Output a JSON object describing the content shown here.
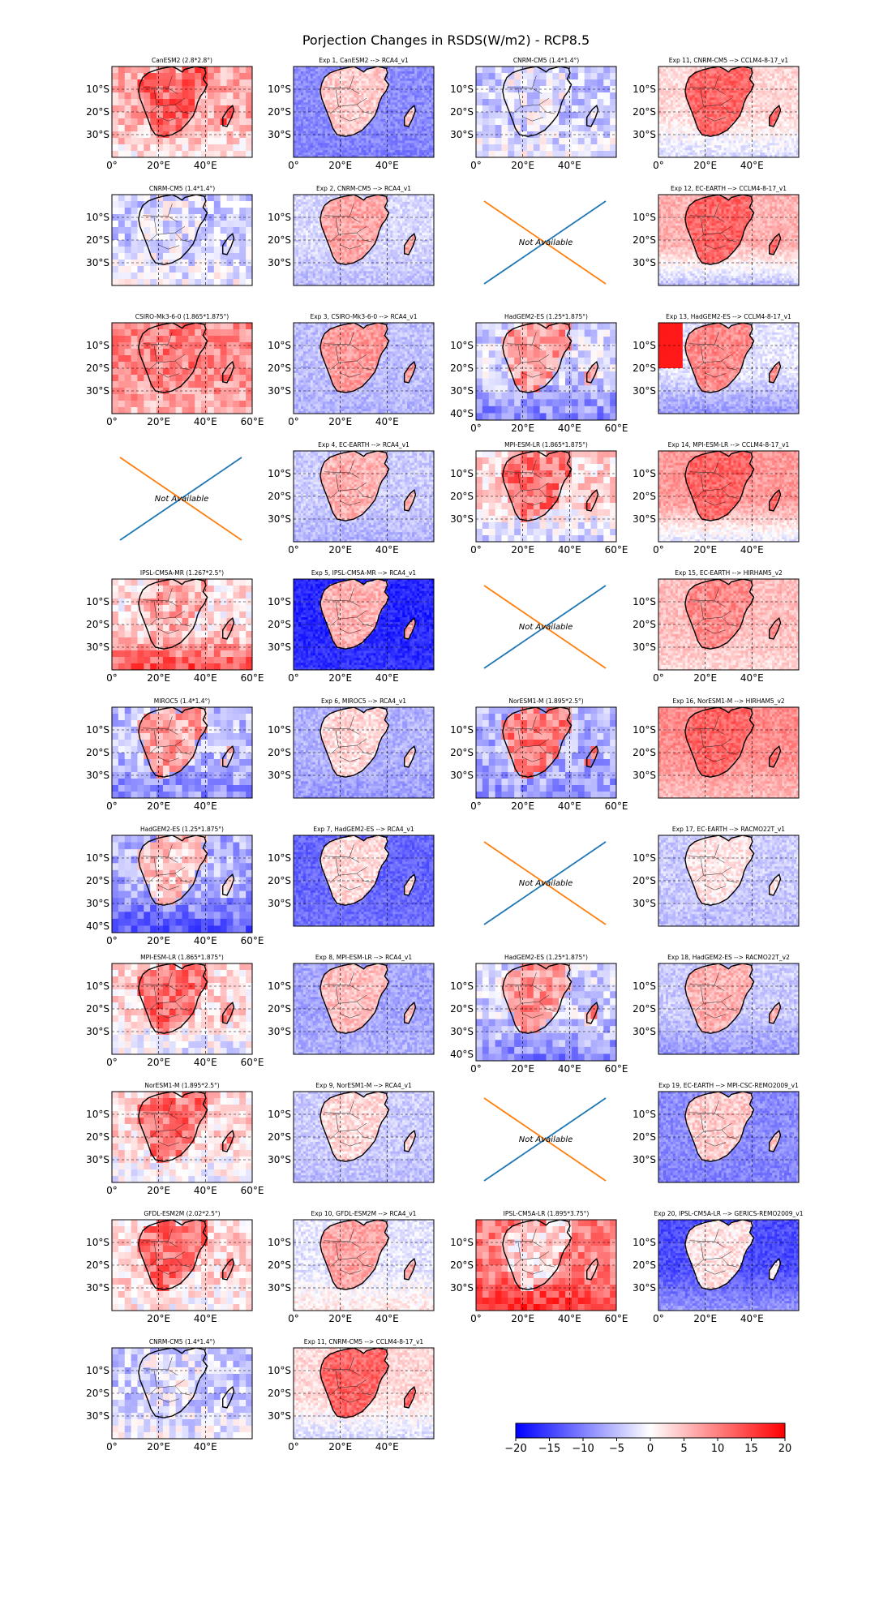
{
  "figure": {
    "title": "Porjection Changes in RSDS(W/m2) - RCP8.5",
    "not_available_label": "Not Available"
  },
  "colormap": {
    "name": "bwr",
    "negative_color": "#0000ff",
    "zero_color": "#ffffff",
    "positive_color": "#ff0000",
    "na_line_colors": [
      "#1f77b4",
      "#ff7f0e"
    ],
    "coast_color": "#000000",
    "grid_color": "#000000"
  },
  "colorbar": {
    "vmin": -20,
    "vmax": 20,
    "ticks": [
      "−20",
      "−15",
      "−10",
      "−5",
      "0",
      "5",
      "10",
      "15",
      "20"
    ]
  },
  "chart_data": {
    "type": "heatmap",
    "variable": "RSDS change (W/m2)",
    "scenario": "RCP8.5",
    "region": "Southern Africa",
    "lon_range": [
      0,
      60
    ],
    "lat_range": [
      -40,
      0
    ],
    "grid_lines": "dashed",
    "legend_placement": "bottom-right colorbar",
    "panels": [
      {
        "title": "CanESM2 (2.8*2.8°)",
        "na": false,
        "land": 12,
        "ocean": 6,
        "south": 2,
        "blocky": true,
        "yticks": [
          "10°S",
          "20°S",
          "30°S"
        ],
        "xticks": [
          "0°",
          "20°E",
          "40°E"
        ]
      },
      {
        "title": "Exp 1, CanESM2 --> RCA4_v1",
        "na": false,
        "land": 4,
        "ocean": -9,
        "south": -10,
        "blocky": false,
        "yticks": [
          "10°S",
          "20°S",
          "30°S"
        ],
        "xticks": [
          "0°",
          "20°E",
          "40°E"
        ]
      },
      {
        "title": "CNRM-CM5 (1.4*1.4°)",
        "na": false,
        "land": -2,
        "ocean": -4,
        "south": -1,
        "blocky": true,
        "yticks": [
          "10°S",
          "20°S",
          "30°S"
        ],
        "xticks": [
          "0°",
          "20°E",
          "40°E"
        ]
      },
      {
        "title": "Exp 11, CNRM-CM5 --> CCLM4-8-17_v1",
        "na": false,
        "land": 12,
        "ocean": 3,
        "south": -3,
        "blocky": false,
        "yticks": [
          "10°S",
          "20°S",
          "30°S"
        ],
        "xticks": [
          "0°",
          "20°E",
          "40°E"
        ]
      },
      {
        "title": "CNRM-CM5 (1.4*1.4°)",
        "na": false,
        "land": -2,
        "ocean": -4,
        "south": -1,
        "blocky": true,
        "yticks": [
          "10°S",
          "20°S",
          "30°S"
        ],
        "xticks": []
      },
      {
        "title": "Exp 2, CNRM-CM5 --> RCA4_v1",
        "na": false,
        "land": 7,
        "ocean": -3,
        "south": -5,
        "blocky": false,
        "yticks": [
          "10°S",
          "20°S",
          "30°S"
        ],
        "xticks": []
      },
      {
        "title": "",
        "na": true
      },
      {
        "title": "Exp 12, EC-EARTH --> CCLM4-8-17_v1",
        "na": false,
        "land": 12,
        "ocean": 6,
        "south": -5,
        "blocky": false,
        "yticks": [
          "10°S",
          "20°S",
          "30°S"
        ],
        "xticks": []
      },
      {
        "title": "CSIRO-Mk3-6-0 (1.865*1.875°)",
        "na": false,
        "land": 10,
        "ocean": 9,
        "south": 6,
        "blocky": true,
        "yticks": [
          "10°S",
          "20°S",
          "30°S"
        ],
        "xticks": [
          "0°",
          "20°E",
          "40°E",
          "60°E"
        ]
      },
      {
        "title": "Exp 3, CSIRO-Mk3-6-0 --> RCA4_v1",
        "na": false,
        "land": 8,
        "ocean": -5,
        "south": -6,
        "blocky": false,
        "yticks": [
          "10°S",
          "20°S",
          "30°S"
        ],
        "xticks": [
          "0°",
          "20°E",
          "40°E"
        ]
      },
      {
        "title": "HadGEM2-ES (1.25*1.875°)",
        "na": false,
        "land": 8,
        "ocean": -3,
        "south": -9,
        "blocky": true,
        "tall": true,
        "yticks": [
          "10°S",
          "20°S",
          "30°S",
          "40°S"
        ],
        "xticks": [
          "0°",
          "20°E",
          "40°E",
          "60°E"
        ]
      },
      {
        "title": "Exp 13, HadGEM2-ES --> CCLM4-8-17_v1",
        "na": false,
        "land": 9,
        "ocean": -2,
        "south": -8,
        "blocky": false,
        "hotspot": true,
        "yticks": [
          "10°S",
          "20°S",
          "30°S"
        ],
        "xticks": []
      },
      {
        "title": "",
        "na": true
      },
      {
        "title": "Exp 4, EC-EARTH --> RCA4_v1",
        "na": false,
        "land": 6,
        "ocean": -4,
        "south": -6,
        "blocky": false,
        "yticks": [
          "10°S",
          "20°S",
          "30°S"
        ],
        "xticks": [
          "0°",
          "20°E",
          "40°E"
        ]
      },
      {
        "title": "MPI-ESM-LR (1.865*1.875°)",
        "na": false,
        "land": 11,
        "ocean": 3,
        "south": -4,
        "blocky": true,
        "yticks": [
          "10°S",
          "20°S",
          "30°S"
        ],
        "xticks": [
          "0°",
          "20°E",
          "40°E",
          "60°E"
        ]
      },
      {
        "title": "Exp 14, MPI-ESM-LR --> CCLM4-8-17_v1",
        "na": false,
        "land": 12,
        "ocean": 8,
        "south": -2,
        "blocky": false,
        "yticks": [
          "10°S",
          "20°S",
          "30°S"
        ],
        "xticks": [
          "0°",
          "20°E",
          "40°E"
        ]
      },
      {
        "title": "IPSL-CM5A-MR (1.267*2.5°)",
        "na": false,
        "land": 6,
        "ocean": 2,
        "south": 15,
        "blocky": true,
        "yticks": [
          "10°S",
          "20°S",
          "30°S"
        ],
        "xticks": [
          "0°",
          "20°E",
          "40°E",
          "60°E"
        ]
      },
      {
        "title": "Exp 5, IPSL-CM5A-MR --> RCA4_v1",
        "na": false,
        "land": 6,
        "ocean": -17,
        "south": -16,
        "blocky": false,
        "yticks": [
          "10°S",
          "20°S",
          "30°S"
        ],
        "xticks": [
          "0°",
          "20°E",
          "40°E"
        ]
      },
      {
        "title": "",
        "na": true
      },
      {
        "title": "Exp 15, EC-EARTH --> HIRHAM5_v2",
        "na": false,
        "land": 9,
        "ocean": 5,
        "south": 3,
        "blocky": false,
        "yticks": [
          "10°S",
          "20°S",
          "30°S"
        ],
        "xticks": [
          "0°",
          "20°E",
          "40°E"
        ]
      },
      {
        "title": "MIROC5 (1.4*1.4°)",
        "na": false,
        "land": 7,
        "ocean": -5,
        "south": -9,
        "blocky": true,
        "yticks": [
          "10°S",
          "20°S",
          "30°S"
        ],
        "xticks": [
          "0°",
          "20°E",
          "40°E"
        ]
      },
      {
        "title": "Exp 6, MIROC5 --> RCA4_v1",
        "na": false,
        "land": 3,
        "ocean": -6,
        "south": -8,
        "blocky": false,
        "yticks": [
          "10°S",
          "20°S",
          "30°S"
        ],
        "xticks": []
      },
      {
        "title": "NorESM1-M (1.895*2.5°)",
        "na": false,
        "land": 10,
        "ocean": -6,
        "south": -8,
        "blocky": true,
        "yticks": [
          "10°S",
          "20°S",
          "30°S"
        ],
        "xticks": [
          "0°",
          "20°E",
          "40°E",
          "60°E"
        ]
      },
      {
        "title": "Exp 16, NorESM1-M --> HIRHAM5_v2",
        "na": false,
        "land": 12,
        "ocean": 9,
        "south": 5,
        "blocky": false,
        "yticks": [
          "10°S",
          "20°S",
          "30°S"
        ],
        "xticks": []
      },
      {
        "title": "HadGEM2-ES (1.25*1.875°)",
        "na": false,
        "land": 4,
        "ocean": -6,
        "south": -12,
        "blocky": true,
        "tall": true,
        "yticks": [
          "10°S",
          "20°S",
          "30°S",
          "40°S"
        ],
        "xticks": [
          "0°",
          "20°E",
          "40°E",
          "60°E"
        ]
      },
      {
        "title": "Exp 7, HadGEM2-ES --> RCA4_v1",
        "na": false,
        "land": 3,
        "ocean": -12,
        "south": -11,
        "blocky": false,
        "yticks": [
          "10°S",
          "20°S",
          "30°S"
        ],
        "xticks": []
      },
      {
        "title": "",
        "na": true
      },
      {
        "title": "Exp 17, EC-EARTH --> RACMO22T_v1",
        "na": false,
        "land": 2,
        "ocean": -4,
        "south": -5,
        "blocky": false,
        "yticks": [
          "10°S",
          "20°S",
          "30°S"
        ],
        "xticks": []
      },
      {
        "title": "MPI-ESM-LR (1.865*1.875°)",
        "na": false,
        "land": 11,
        "ocean": 3,
        "south": -2,
        "blocky": true,
        "yticks": [
          "10°S",
          "20°S",
          "30°S"
        ],
        "xticks": [
          "0°",
          "20°E",
          "40°E",
          "60°E"
        ]
      },
      {
        "title": "Exp 8, MPI-ESM-LR --> RCA4_v1",
        "na": false,
        "land": 5,
        "ocean": -7,
        "south": -6,
        "blocky": false,
        "yticks": [
          "10°S",
          "20°S",
          "30°S"
        ],
        "xticks": []
      },
      {
        "title": "HadGEM2-ES (1.25*1.875°)",
        "na": false,
        "land": 8,
        "ocean": -3,
        "south": -9,
        "blocky": true,
        "tall": true,
        "yticks": [
          "10°S",
          "20°S",
          "30°S",
          "40°S"
        ],
        "xticks": [
          "0°",
          "20°E",
          "40°E",
          "60°E"
        ]
      },
      {
        "title": "Exp 18, HadGEM2-ES --> RACMO22T_v2",
        "na": false,
        "land": 6,
        "ocean": -4,
        "south": -8,
        "blocky": false,
        "yticks": [
          "10°S",
          "20°S",
          "30°S"
        ],
        "xticks": []
      },
      {
        "title": "NorESM1-M (1.895*2.5°)",
        "na": false,
        "land": 11,
        "ocean": 3,
        "south": -1,
        "blocky": true,
        "yticks": [
          "10°S",
          "20°S",
          "30°S"
        ],
        "xticks": [
          "0°",
          "20°E",
          "40°E",
          "60°E"
        ]
      },
      {
        "title": "Exp 9, NorESM1-M --> RCA4_v1",
        "na": false,
        "land": 3,
        "ocean": -4,
        "south": -5,
        "blocky": false,
        "yticks": [
          "10°S",
          "20°S",
          "30°S"
        ],
        "xticks": []
      },
      {
        "title": "",
        "na": true
      },
      {
        "title": "Exp 19, EC-EARTH --> MPI-CSC-REMO2009_v1",
        "na": false,
        "land": 4,
        "ocean": -9,
        "south": -10,
        "blocky": false,
        "yticks": [
          "10°S",
          "20°S",
          "30°S"
        ],
        "xticks": []
      },
      {
        "title": "GFDL-ESM2M (2.02*2.5°)",
        "na": false,
        "land": 11,
        "ocean": 3,
        "south": 1,
        "blocky": true,
        "yticks": [
          "10°S",
          "20°S",
          "30°S"
        ],
        "xticks": [
          "20°E",
          "40°E"
        ]
      },
      {
        "title": "Exp 10, GFDL-ESM2M --> RCA4_v1",
        "na": false,
        "land": 7,
        "ocean": -2,
        "south": 2,
        "blocky": false,
        "yticks": [
          "10°S",
          "20°S",
          "30°S"
        ],
        "xticks": [
          "0°",
          "20°E",
          "40°E"
        ]
      },
      {
        "title": "IPSL-CM5A-LR (1.895*3.75°)",
        "na": false,
        "land": 3,
        "ocean": 10,
        "south": 16,
        "blocky": true,
        "yticks": [
          "10°S",
          "20°S",
          "30°S"
        ],
        "xticks": [
          "0°",
          "20°E",
          "40°E",
          "60°E"
        ]
      },
      {
        "title": "Exp 20, IPSL-CM5A-LR --> GERICS-REMO2009_v1",
        "na": false,
        "land": 2,
        "ocean": -14,
        "south": -8,
        "blocky": false,
        "yticks": [
          "10°S",
          "20°S",
          "30°S"
        ],
        "xticks": [
          "0°",
          "20°E",
          "40°E"
        ]
      },
      {
        "title": "CNRM-CM5 (1.4*1.4°)",
        "na": false,
        "land": -2,
        "ocean": -4,
        "south": -1,
        "blocky": true,
        "yticks": [
          "10°S",
          "20°S",
          "30°S"
        ],
        "xticks": [
          "0°",
          "20°E",
          "40°E"
        ]
      },
      {
        "title": "Exp 11, CNRM-CM5 --> CCLM4-8-17_v1",
        "na": false,
        "land": 12,
        "ocean": 3,
        "south": -3,
        "blocky": false,
        "yticks": [
          "10°S",
          "20°S",
          "30°S"
        ],
        "xticks": [
          "0°",
          "20°E",
          "40°E"
        ]
      }
    ]
  }
}
